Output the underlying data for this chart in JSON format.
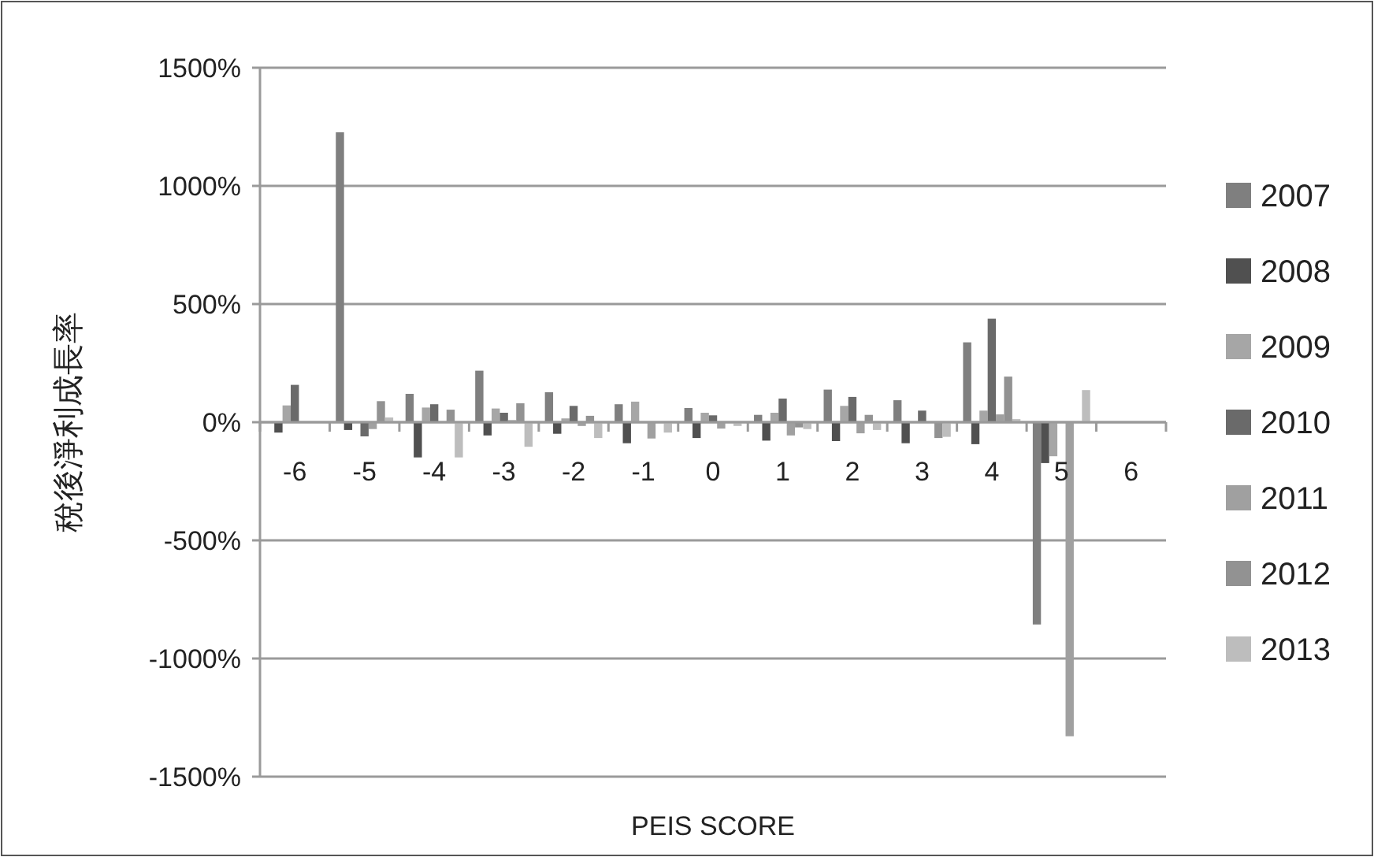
{
  "chart_data": {
    "type": "bar",
    "xlabel": "PEIS SCORE",
    "ylabel": "稅後淨利成長率",
    "categories": [
      "-6",
      "-5",
      "-4",
      "-3",
      "-2",
      "-1",
      "0",
      "1",
      "2",
      "3",
      "4",
      "5",
      "6"
    ],
    "series": [
      {
        "name": "2007",
        "color": "#7f7f7f",
        "values": [
          null,
          1227,
          120,
          218,
          127,
          76,
          60,
          31,
          138,
          93,
          338,
          -856,
          null
        ]
      },
      {
        "name": "2008",
        "color": "#505050",
        "values": [
          -44,
          -33,
          -149,
          -56,
          -49,
          -89,
          -67,
          -78,
          -80,
          -89,
          -93,
          -173,
          null
        ]
      },
      {
        "name": "2009",
        "color": "#a6a6a6",
        "values": [
          71,
          null,
          62,
          58,
          16,
          87,
          40,
          40,
          69,
          null,
          49,
          -144,
          null
        ]
      },
      {
        "name": "2010",
        "color": "#6a6a6a",
        "values": [
          158,
          -60,
          76,
          40,
          69,
          null,
          29,
          100,
          107,
          49,
          438,
          null,
          null
        ]
      },
      {
        "name": "2011",
        "color": "#a0a0a0",
        "values": [
          null,
          -29,
          null,
          9,
          -16,
          -69,
          -27,
          -56,
          -47,
          null,
          33,
          -1329,
          null
        ]
      },
      {
        "name": "2012",
        "color": "#929292",
        "values": [
          null,
          89,
          53,
          80,
          27,
          null,
          null,
          -22,
          31,
          -67,
          193,
          null,
          null
        ]
      },
      {
        "name": "2013",
        "color": "#bdbdbd",
        "values": [
          null,
          20,
          -149,
          -104,
          -67,
          -44,
          -16,
          -29,
          -33,
          -62,
          13,
          136,
          null
        ]
      }
    ],
    "ylim": [
      -1500,
      1500
    ],
    "yticks": [
      {
        "value": -1500,
        "label": "-1500%"
      },
      {
        "value": -1000,
        "label": "-1000%"
      },
      {
        "value": -500,
        "label": "-500%"
      },
      {
        "value": 0,
        "label": "0%"
      },
      {
        "value": 500,
        "label": "500%"
      },
      {
        "value": 1000,
        "label": "1000%"
      },
      {
        "value": 1500,
        "label": "1500%"
      }
    ],
    "grid": "y",
    "legend": "right"
  }
}
